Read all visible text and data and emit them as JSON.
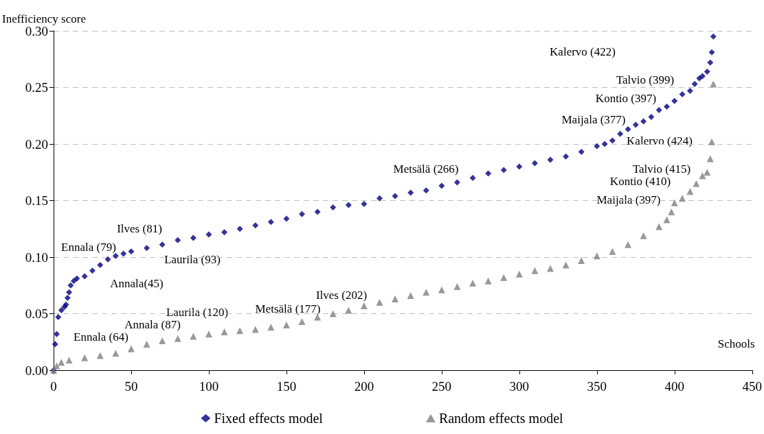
{
  "chart_data": {
    "type": "scatter",
    "xlabel": "Schools",
    "ylabel": "Inefficiency score",
    "xlim": [
      0,
      450
    ],
    "xticks": [
      0,
      50,
      100,
      150,
      200,
      250,
      300,
      350,
      400,
      450
    ],
    "ylim": [
      0,
      0.3
    ],
    "yticks": [
      {
        "value": 0,
        "label": "0.00"
      },
      {
        "value": 0.05,
        "label": "0.05"
      },
      {
        "value": 0.1,
        "label": "0.10"
      },
      {
        "value": 0.15,
        "label": "0.15"
      },
      {
        "value": 0.2,
        "label": "0.20"
      },
      {
        "value": 0.25,
        "label": "0.25"
      },
      {
        "value": 0.3,
        "label": "0.30"
      }
    ],
    "grid": "y",
    "legend": "bottom",
    "series": [
      {
        "name": "Fixed effects model",
        "color": "#000080",
        "marker": "diamond",
        "x": [
          0,
          1,
          2,
          3,
          5,
          7,
          8,
          9,
          10,
          11,
          13,
          15,
          20,
          25,
          30,
          35,
          40,
          45,
          50,
          60,
          70,
          80,
          90,
          100,
          110,
          120,
          130,
          140,
          150,
          160,
          170,
          180,
          190,
          200,
          210,
          220,
          230,
          240,
          250,
          260,
          270,
          280,
          290,
          300,
          310,
          320,
          330,
          340,
          350,
          355,
          360,
          365,
          370,
          375,
          380,
          385,
          390,
          395,
          400,
          405,
          410,
          413,
          416,
          418,
          421,
          423,
          424,
          425
        ],
        "values": [
          0,
          0.023,
          0.032,
          0.047,
          0.053,
          0.056,
          0.058,
          0.064,
          0.069,
          0.075,
          0.079,
          0.081,
          0.083,
          0.088,
          0.093,
          0.098,
          0.101,
          0.103,
          0.105,
          0.108,
          0.111,
          0.115,
          0.117,
          0.12,
          0.122,
          0.125,
          0.128,
          0.131,
          0.134,
          0.138,
          0.14,
          0.144,
          0.146,
          0.147,
          0.152,
          0.154,
          0.157,
          0.159,
          0.163,
          0.166,
          0.17,
          0.174,
          0.177,
          0.18,
          0.183,
          0.186,
          0.189,
          0.193,
          0.198,
          0.2,
          0.203,
          0.209,
          0.213,
          0.217,
          0.22,
          0.224,
          0.23,
          0.233,
          0.238,
          0.244,
          0.247,
          0.253,
          0.258,
          0.26,
          0.264,
          0.272,
          0.281,
          0.295
        ]
      },
      {
        "name": "Random effects model",
        "color": "#808080",
        "marker": "triangle",
        "x": [
          0,
          2,
          5,
          10,
          20,
          30,
          40,
          50,
          60,
          70,
          80,
          90,
          100,
          110,
          120,
          130,
          140,
          150,
          160,
          170,
          180,
          190,
          200,
          210,
          220,
          230,
          240,
          250,
          260,
          270,
          280,
          290,
          300,
          310,
          320,
          330,
          340,
          350,
          360,
          370,
          380,
          390,
          395,
          398,
          400,
          405,
          410,
          414,
          418,
          421,
          423,
          424,
          425
        ],
        "values": [
          0,
          0.004,
          0.007,
          0.009,
          0.011,
          0.013,
          0.015,
          0.019,
          0.023,
          0.026,
          0.028,
          0.03,
          0.032,
          0.034,
          0.035,
          0.036,
          0.038,
          0.04,
          0.043,
          0.047,
          0.05,
          0.053,
          0.057,
          0.06,
          0.063,
          0.066,
          0.069,
          0.071,
          0.074,
          0.077,
          0.079,
          0.082,
          0.085,
          0.088,
          0.09,
          0.093,
          0.097,
          0.101,
          0.105,
          0.111,
          0.119,
          0.127,
          0.133,
          0.14,
          0.148,
          0.152,
          0.158,
          0.165,
          0.172,
          0.175,
          0.187,
          0.202,
          0.253
        ]
      }
    ],
    "annotations": [
      "Kalervo (422)",
      "Talvio (399)",
      "Kontio (397)",
      "Maijala (377)",
      "Kalervo (424)",
      "Talvio (415)",
      "Kontio (410)",
      "Maijala (397)",
      "Metsälä (266)",
      "Ilves (81)",
      "Ennala (79)",
      "Laurila (93)",
      "Annala(45)",
      "Ilves (202)",
      "Metsälä (177)",
      "Laurila (120)",
      "Annala (87)",
      "Ennala (64)"
    ]
  }
}
